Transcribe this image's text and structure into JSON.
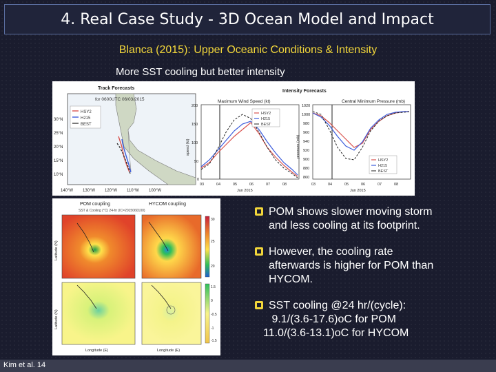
{
  "slide": {
    "title": "4. Real Case Study - 3D Ocean Model and Impact",
    "subtitle": "Blanca (2015): Upper Oceanic Conditions & Intensity",
    "caption": "More SST cooling but better intensity",
    "footer": "Kim et al. 14"
  },
  "figure_top": {
    "track_title": "Track Forecasts",
    "track_subtitle": "for 0600UTC 06/03/2015",
    "intensity_title": "Intensity Forecasts",
    "wind_title": "Maximum Wind Speed (kt)",
    "pressure_title": "Central Minimum Pressure (mb)",
    "lat_ticks": [
      "30°N",
      "25°N",
      "20°N",
      "15°N",
      "10°N"
    ],
    "lon_ticks": [
      "140°W",
      "130°W",
      "120°W",
      "110°W",
      "100°W"
    ],
    "wind_yticks": [
      "200",
      "150",
      "100",
      "50",
      "0"
    ],
    "wind_ylabel": "speed (kt)",
    "pres_yticks": [
      "1020",
      "1000",
      "980",
      "960",
      "940",
      "920",
      "900",
      "880",
      "860"
    ],
    "pres_ylabel": "pressure (mb)",
    "date_ticks": [
      "03",
      "04",
      "05",
      "06",
      "07",
      "08"
    ],
    "date_axis_label": "Jun 2015",
    "legend": [
      "HSY2",
      "H215",
      "BEST"
    ],
    "legend_pres": [
      "HSY2",
      "H215",
      "BEST"
    ]
  },
  "figure_bottom": {
    "pom_title": "POM coupling",
    "hycom_title": "HYCOM coupling",
    "header": "SST & Cooling (°C) 24-hr (IC=2015060100)",
    "ylabel": "Latitude (N)",
    "xlabel": "Longitude (E)",
    "colorbar_top": [
      "30",
      "25",
      "20"
    ],
    "colorbar_bottom": [
      "1.5",
      "0",
      "-0.5",
      "-1",
      "-1.5"
    ]
  },
  "bullets": [
    {
      "lines": [
        "POM shows slower moving storm",
        "and less cooling at its footprint."
      ]
    },
    {
      "lines": [
        "However, the cooling rate",
        "afterwards is higher for POM than",
        "HYCOM."
      ]
    },
    {
      "lines": [
        "SST cooling @24 hr/(cycle):",
        " 9.1/(3.6-17.6)oC for POM",
        "11.0/(3.6-13.1)oC for HYCOM"
      ]
    }
  ],
  "colors": {
    "background": "#1a1c2e",
    "subtitle": "#f2d63a",
    "bullet": "#f2d63a",
    "series_hsy2": "#d9534f",
    "series_h215": "#3b5bdb",
    "series_best": "#222222"
  }
}
